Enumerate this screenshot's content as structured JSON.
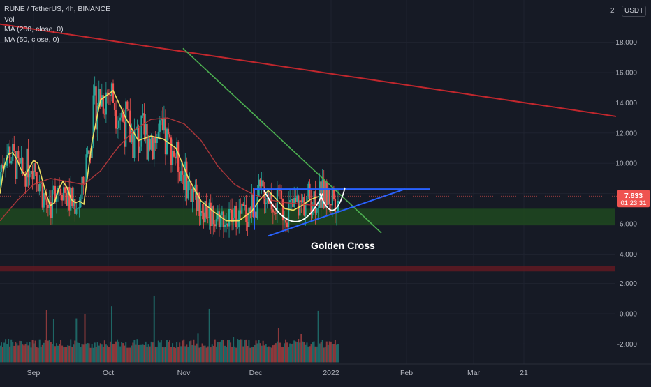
{
  "legend": {
    "symbol": "RUNE / TetherUS, 4h, BINANCE",
    "volume": "Vol",
    "ma200": "MA (200, close, 0)",
    "ma50": "MA (50, close, 0)"
  },
  "price_axis": {
    "unit": "USDT",
    "top_label": "2",
    "ticks": [
      "18.000",
      "16.000",
      "14.000",
      "12.000",
      "10.000",
      "6.000",
      "4.000",
      "2.000",
      "0.000",
      "-2.000"
    ],
    "current_price": "7.833",
    "countdown": "01:23:31"
  },
  "time_axis": {
    "labels": [
      "Sep",
      "Oct",
      "Nov",
      "Dec",
      "2022",
      "Feb",
      "Mar",
      "21"
    ]
  },
  "annotation": {
    "text": "Golden Cross"
  },
  "colors": {
    "background": "#161a25",
    "candle_up": "#26a69a",
    "candle_down": "#ef5350",
    "ma50": "#f5e663",
    "ma200": "#b2383b",
    "trend_red": "#c1272d",
    "trend_green": "#4caf50",
    "pattern_blue": "#2962ff",
    "support_zone": "#1e4620",
    "resistance_zone": "#5c1a22",
    "price_tag": "#ef5350"
  },
  "chart_data": {
    "type": "candlestick",
    "price_ticks": [
      18,
      16,
      14,
      12,
      10,
      6,
      4
    ],
    "volume_ticks": [
      2,
      0,
      -2
    ],
    "current_price": 7.833,
    "support_zone": [
      5.9,
      7.0
    ],
    "resistance_zone": [
      3.2,
      3.5
    ],
    "series": [
      {
        "name": "MA (50, close, 0)",
        "x": [
          0,
          0.05,
          0.1,
          0.15,
          0.2,
          0.25,
          0.3,
          0.35,
          0.4,
          0.45,
          0.5,
          0.55,
          0.6,
          0.65,
          0.7,
          0.75,
          0.8,
          0.85,
          0.9,
          0.95,
          1.0,
          1.1,
          1.2,
          1.35,
          1.5,
          1.65,
          1.8,
          1.95,
          2.1,
          2.25,
          2.4,
          2.55,
          2.7,
          2.85,
          3.0,
          3.1,
          3.2,
          3.3,
          3.4,
          3.5,
          3.6,
          3.7,
          3.8
        ],
        "y": [
          8.0,
          9.8,
          10.6,
          10.7,
          10.3,
          9.6,
          9.2,
          9.7,
          10.2,
          10.0,
          9.0,
          8.0,
          7.2,
          7.4,
          8.3,
          8.8,
          8.4,
          7.6,
          7.4,
          7.5,
          7.3,
          11.5,
          14.2,
          14.8,
          13.0,
          11.5,
          11.8,
          11.6,
          11.0,
          9.0,
          7.5,
          6.8,
          6.2,
          6.2,
          6.8,
          7.6,
          8.2,
          7.6,
          7.0,
          6.9,
          7.2,
          7.6,
          7.8
        ]
      },
      {
        "name": "MA (200, close, 0)",
        "x": [
          0,
          0.2,
          0.4,
          0.6,
          0.8,
          1.0,
          1.2,
          1.4,
          1.6,
          1.8,
          2.0,
          2.2,
          2.4,
          2.6,
          2.8,
          3.0,
          3.2,
          3.4,
          3.6,
          3.8
        ],
        "y": [
          6.2,
          7.5,
          8.6,
          9.0,
          8.8,
          8.6,
          9.5,
          11.0,
          12.2,
          12.9,
          13.0,
          12.6,
          11.5,
          9.8,
          8.6,
          8.0,
          7.6,
          7.4,
          7.3,
          7.2
        ]
      }
    ]
  }
}
